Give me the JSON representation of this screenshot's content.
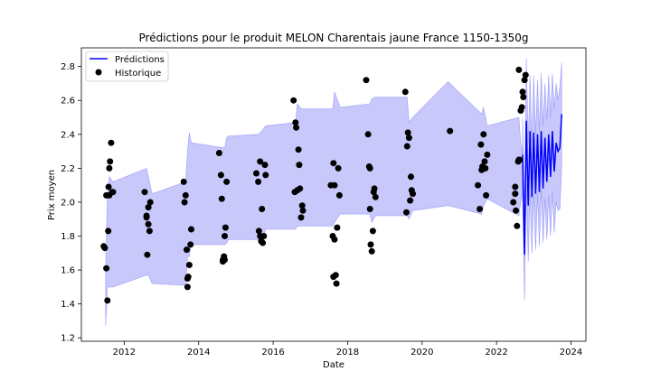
{
  "chart_data": {
    "type": "scatter",
    "title": "Prédictions pour le produit MELON Charentais jaune France 1150-1350g",
    "xlabel": "Date",
    "ylabel": "Prix moyen",
    "xlim": [
      2010.85,
      2024.4
    ],
    "ylim": [
      1.18,
      2.91
    ],
    "x_ticks": [
      2012,
      2014,
      2016,
      2018,
      2020,
      2022,
      2024
    ],
    "y_ticks": [
      1.2,
      1.4,
      1.6,
      1.8,
      2.0,
      2.2,
      2.4,
      2.6,
      2.8
    ],
    "legend": {
      "placement": "upper-left",
      "entries": [
        {
          "label": "Prédictions",
          "marker": "line",
          "color": "#0000ff"
        },
        {
          "label": "Historique",
          "marker": "dot",
          "color": "#000000"
        }
      ]
    },
    "colors": {
      "prediction_line": "#0000ff",
      "confidence_band": "#c8c8fa",
      "band_edge": "#8080ff",
      "history": "#000000"
    },
    "confidence_band": {
      "x": [
        2011.5,
        2011.55,
        2011.6,
        2011.7,
        2012.6,
        2012.65,
        2012.75,
        2013.65,
        2013.7,
        2013.75,
        2013.8,
        2014.7,
        2014.75,
        2014.8,
        2015.6,
        2015.7,
        2015.8,
        2016.6,
        2016.65,
        2016.75,
        2017.6,
        2017.65,
        2017.8,
        2018.6,
        2018.65,
        2018.75,
        2019.6,
        2019.65,
        2019.75,
        2020.7,
        2021.6,
        2021.65,
        2021.75,
        2022.6,
        2022.65,
        2022.7
      ],
      "upper": [
        1.6,
        2.05,
        2.15,
        2.12,
        2.2,
        2.15,
        2.05,
        2.12,
        2.3,
        2.41,
        2.35,
        2.32,
        2.38,
        2.39,
        2.4,
        2.42,
        2.45,
        2.47,
        2.58,
        2.55,
        2.55,
        2.65,
        2.56,
        2.58,
        2.61,
        2.62,
        2.62,
        2.47,
        2.5,
        2.71,
        2.52,
        2.56,
        2.45,
        2.5,
        2.35,
        2.3
      ],
      "lower": [
        1.27,
        1.5,
        1.5,
        1.5,
        1.57,
        1.57,
        1.52,
        1.51,
        1.68,
        1.68,
        1.75,
        1.75,
        1.76,
        1.78,
        1.78,
        1.78,
        1.84,
        1.84,
        1.86,
        1.86,
        1.86,
        1.88,
        1.93,
        1.93,
        1.88,
        1.92,
        1.92,
        1.9,
        1.95,
        1.98,
        1.93,
        1.98,
        2.02,
        1.92,
        2.0,
        2.05
      ]
    },
    "predictions": {
      "x": [
        2022.7,
        2022.75,
        2022.8,
        2022.85,
        2022.9,
        2022.95,
        2023.0,
        2023.05,
        2023.1,
        2023.15,
        2023.2,
        2023.25,
        2023.3,
        2023.35,
        2023.4,
        2023.45,
        2023.5,
        2023.55,
        2023.6,
        2023.65,
        2023.7,
        2023.75
      ],
      "y": [
        2.28,
        1.69,
        2.48,
        1.98,
        2.42,
        2.03,
        2.41,
        2.05,
        2.4,
        2.06,
        2.42,
        2.08,
        2.38,
        2.12,
        2.4,
        2.15,
        2.42,
        2.18,
        2.35,
        2.3,
        2.32,
        2.52
      ],
      "upper": [
        2.5,
        1.95,
        2.85,
        2.35,
        2.75,
        2.35,
        2.75,
        2.4,
        2.72,
        2.42,
        2.76,
        2.45,
        2.7,
        2.48,
        2.75,
        2.5,
        2.76,
        2.55,
        2.7,
        2.6,
        2.68,
        2.82
      ],
      "lower": [
        2.05,
        1.42,
        2.1,
        1.65,
        2.05,
        1.7,
        2.05,
        1.72,
        2.05,
        1.74,
        2.08,
        1.76,
        2.02,
        1.78,
        2.04,
        1.8,
        2.06,
        1.82,
        2.0,
        1.95,
        1.96,
        2.2
      ]
    },
    "historique": {
      "x": [
        2011.45,
        2011.48,
        2011.52,
        2011.55,
        2011.57,
        2011.58,
        2011.6,
        2011.6,
        2011.62,
        2011.65,
        2011.68,
        2011.7,
        2011.52,
        2012.55,
        2012.6,
        2012.62,
        2012.65,
        2012.68,
        2012.7,
        2012.65,
        2012.6,
        2013.6,
        2013.65,
        2013.62,
        2013.68,
        2013.7,
        2013.72,
        2013.7,
        2013.75,
        2013.78,
        2013.8,
        2014.55,
        2014.6,
        2014.62,
        2014.65,
        2014.68,
        2014.7,
        2014.72,
        2014.7,
        2014.75,
        2014.65,
        2015.55,
        2015.6,
        2015.62,
        2015.65,
        2015.68,
        2015.72,
        2015.75,
        2015.78,
        2015.7,
        2015.65,
        2015.8,
        2016.55,
        2016.6,
        2016.62,
        2016.65,
        2016.68,
        2016.7,
        2016.72,
        2016.75,
        2016.78,
        2016.8,
        2016.58,
        2017.55,
        2017.6,
        2017.62,
        2017.65,
        2017.68,
        2017.7,
        2017.72,
        2017.75,
        2017.78,
        2017.62,
        2017.65,
        2018.5,
        2018.55,
        2018.58,
        2018.6,
        2018.62,
        2018.65,
        2018.68,
        2018.7,
        2018.72,
        2018.75,
        2018.6,
        2019.55,
        2019.6,
        2019.62,
        2019.65,
        2019.68,
        2019.7,
        2019.72,
        2019.75,
        2019.58,
        2020.75,
        2021.5,
        2021.55,
        2021.58,
        2021.6,
        2021.62,
        2021.65,
        2021.68,
        2021.7,
        2021.72,
        2021.75,
        2022.45,
        2022.5,
        2022.52,
        2022.55,
        2022.58,
        2022.6,
        2022.62,
        2022.65,
        2022.68,
        2022.7,
        2022.72,
        2022.75,
        2022.78,
        2022.6,
        2022.5
      ],
      "y": [
        1.74,
        1.73,
        1.61,
        1.42,
        1.83,
        2.09,
        2.04,
        2.2,
        2.24,
        2.35,
        2.06,
        2.06,
        2.04,
        2.06,
        1.92,
        1.69,
        1.87,
        1.83,
        2.0,
        1.97,
        1.91,
        2.12,
        2.04,
        2.0,
        1.72,
        1.55,
        1.56,
        1.5,
        1.63,
        1.75,
        1.84,
        2.29,
        2.16,
        2.02,
        1.66,
        1.68,
        1.66,
        1.85,
        1.8,
        2.12,
        1.65,
        2.17,
        2.12,
        1.83,
        1.8,
        1.77,
        1.76,
        1.8,
        2.22,
        1.96,
        2.24,
        2.16,
        2.6,
        2.47,
        2.44,
        2.07,
        2.31,
        2.22,
        2.08,
        1.91,
        1.98,
        1.95,
        2.06,
        2.1,
        1.8,
        1.56,
        1.78,
        1.57,
        1.52,
        1.85,
        2.2,
        2.04,
        2.23,
        2.1,
        2.72,
        2.4,
        2.21,
        1.96,
        1.75,
        1.71,
        1.83,
        2.06,
        2.08,
        2.03,
        2.2,
        2.65,
        2.33,
        2.41,
        2.38,
        2.01,
        2.15,
        2.07,
        2.05,
        1.94,
        2.42,
        2.1,
        1.96,
        2.34,
        2.19,
        2.21,
        2.4,
        2.24,
        2.2,
        2.04,
        2.28,
        2.0,
        2.09,
        1.95,
        1.86,
        2.24,
        2.25,
        2.25,
        2.54,
        2.56,
        2.65,
        2.62,
        2.72,
        2.75,
        2.78,
        2.05
      ]
    }
  }
}
